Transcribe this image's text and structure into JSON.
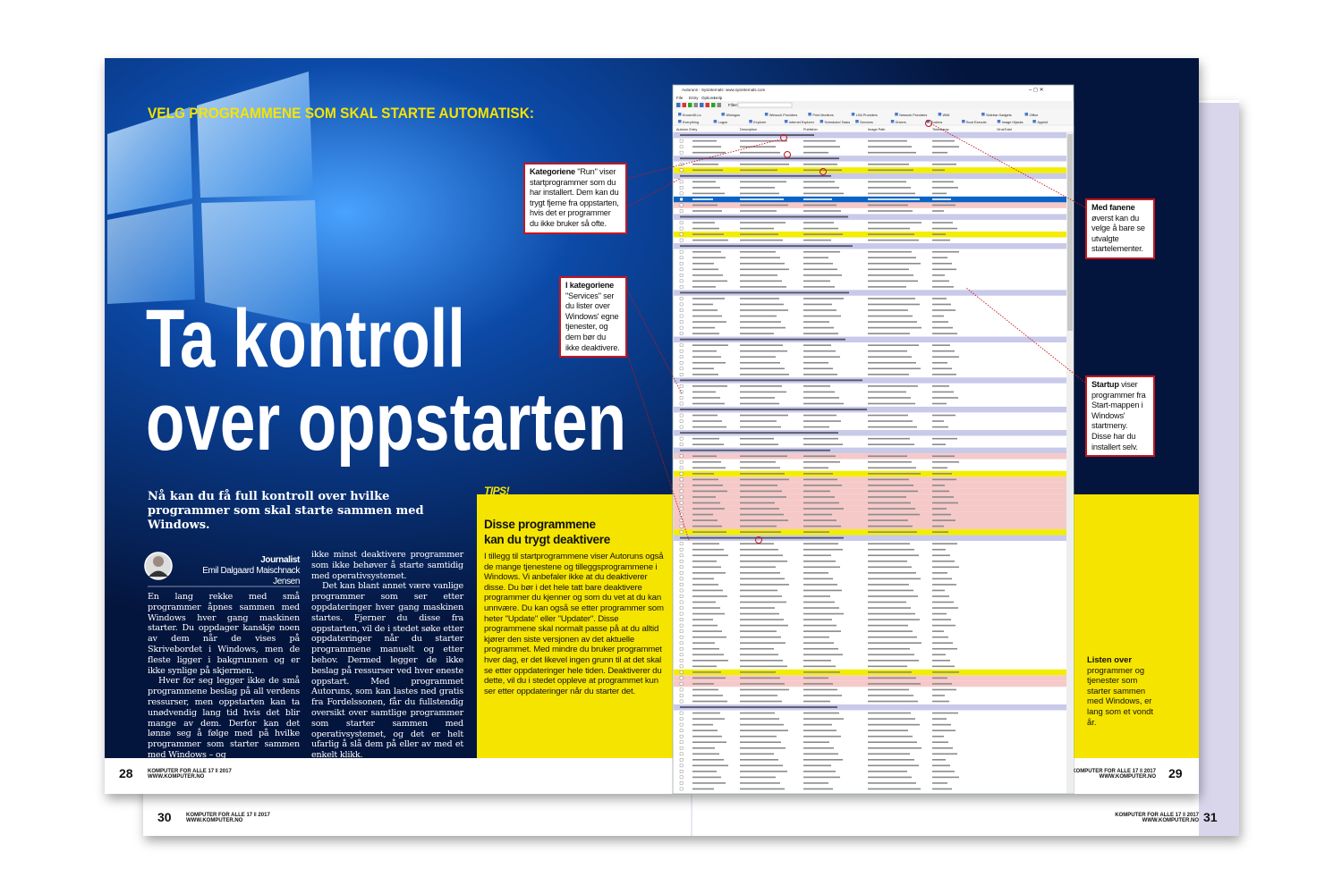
{
  "left_page": {
    "kicker": "VELG PROGRAMMENE SOM SKAL STARTE AUTOMATISK:",
    "title_lines": [
      "Ta kontroll",
      "over oppstarten"
    ],
    "lead": "Nå kan du få full kontroll over hvilke programmer som skal starte sammen med Windows.",
    "byline": {
      "role": "Journalist",
      "name": "Emil Dalgaard Maischnack Jensen"
    },
    "body_columns": [
      [
        "En lang rekke med små programmer åpnes sammen med Windows hver gang maskinen starter. Du oppdager kanskje noen av dem når de vises på Skrivebordet i Windows, men de fleste ligger i bakgrunnen og er ikke synlige på skjermen.",
        "Hver for seg legger ikke de små programmene beslag på all verdens ressurser, men oppstarten kan ta unødvendig lang tid hvis det blir mange av dem. Derfor kan det lønne seg å følge med på hvilke programmer som starter sammen med Windows – og"
      ],
      [
        "ikke minst deaktivere programmer som ikke behøver å starte samtidig med operativsystemet.",
        "Det kan blant annet være vanlige programmer som ser etter oppdateringer hver gang maskinen startes. Fjerner du disse fra oppstarten, vil de i stedet søke etter oppdateringer når du starter programmene manuelt og etter behov. Dermed legger de ikke beslag på ressurser ved hver eneste oppstart. Med programmet Autoruns, som kan lastes ned gratis fra Fordelssonen, får du fullstendig oversikt over samtlige programmer som starter sammen med operativsystemet, og det er helt ufarlig å slå dem på eller av med et enkelt klikk."
      ]
    ],
    "tips": {
      "label": "TIPS!",
      "heading_lines": [
        "Disse programmene",
        "kan du trygt deaktivere"
      ],
      "text": "I tillegg til startprogrammene viser Autoruns også de mange tjenestene og tilleggsprogrammene i Windows. Vi anbefaler ikke at du deaktiverer disse. Du bør i det hele tatt bare deaktivere programmer du kjenner og som du vet at du kan unnvære. Du kan også se etter programmer som heter \"Update\" eller \"Updater\". Disse programmene skal normalt passe på at du alltid kjører den siste versjonen av det aktuelle programmet. Med mindre du bruker programmet hver dag, er det likevel ingen grunn til at det skal se etter oppdateringer hele tiden. Deaktiverer du dette, vil du i stedet oppleve at programmet kun ser etter oppdateringer når du starter det."
    },
    "callouts": [
      {
        "bold": "Kategoriene",
        "text": "\"Run\" viser startprogrammer som du har installert. Dem kan du trygt fjerne fra oppstarten, hvis det er programmer du ikke bruker så ofte."
      },
      {
        "bold": "I kategoriene",
        "text": "\"Services\" ser du lister over Windows' egne tjenester, og dem bør du ikke deaktivere."
      }
    ],
    "footer": {
      "page": "28",
      "magazine": "KOMPUTER FOR ALLE 17 ‖ 2017",
      "site": "WWW.KOMPUTER.NO"
    }
  },
  "right_page": {
    "screenshot": {
      "window_title": "Autoruns - Sysinternals: www.sysinternals.com",
      "menu": [
        "File",
        "Entry",
        "Options",
        "Help"
      ],
      "filter_label": "Filter:",
      "tabs_top": [
        "KnownDLLs",
        "Winlogon",
        "Winsock Providers",
        "Print Monitors",
        "LSA Providers",
        "Network Providers",
        "WMI",
        "Sidebar Gadgets",
        "Office"
      ],
      "tabs_bottom": [
        "Everything",
        "Logon",
        "Explorer",
        "Internet Explorer",
        "Scheduled Tasks",
        "Services",
        "Drivers",
        "Codecs",
        "Boot Execute",
        "Image Hijacks",
        "AppInit"
      ],
      "columns": [
        "Autorun Entry",
        "Description",
        "Publisher",
        "Image Path",
        "Timestamp",
        "VirusTotal"
      ]
    },
    "callouts": [
      {
        "bold": "Med fanene",
        "text": "øverst kan du velge å bare se utvalgte startelementer."
      },
      {
        "bold": "Startup",
        "text": "viser programmer fra Start-mappen i Windows' startmeny. Disse har du installert selv."
      }
    ],
    "caption": {
      "bold": "Listen over",
      "text": "programmer og tjenester som starter sammen med Windows, er lang som et vondt år."
    },
    "footer": {
      "page": "29",
      "magazine": "KOMPUTER FOR ALLE 17 ‖ 2017",
      "site": "WWW.KOMPUTER.NO"
    }
  },
  "back_pages": {
    "left_footer": {
      "page": "30",
      "magazine": "KOMPUTER FOR ALLE 17 ‖ 2017",
      "site": "WWW.KOMPUTER.NO"
    },
    "right_footer": {
      "page": "31",
      "magazine": "KOMPUTER FOR ALLE 17 ‖ 2017",
      "site": "WWW.KOMPUTER.NO"
    }
  }
}
